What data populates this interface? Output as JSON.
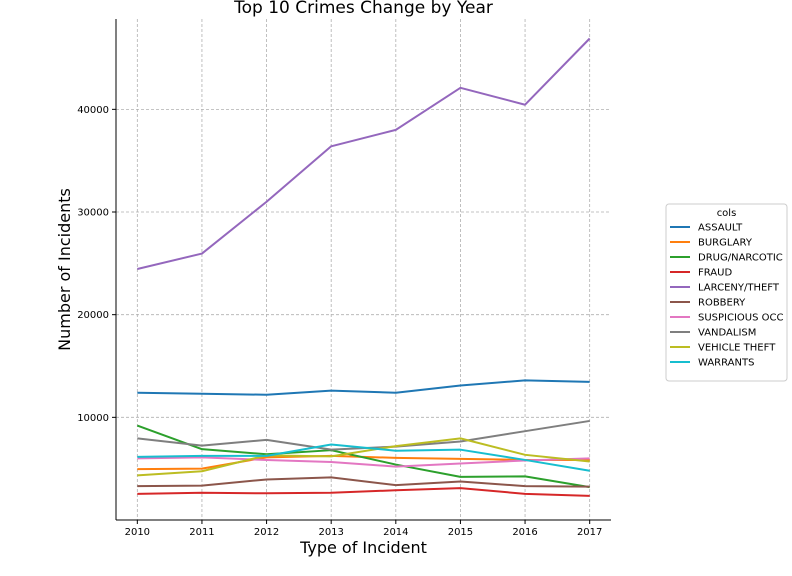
{
  "chart_data": {
    "type": "line",
    "title": "Top 10 Crimes Change by Year",
    "xlabel": "Type of Incident",
    "ylabel": "Number of Incidents",
    "x": [
      2010,
      2011,
      2012,
      2013,
      2014,
      2015,
      2016,
      2017
    ],
    "xtick_labels": [
      "2010",
      "2011",
      "2012",
      "2013",
      "2014",
      "2015",
      "2016",
      "2017"
    ],
    "yticks": [
      10000,
      20000,
      30000,
      40000
    ],
    "ytick_labels": [
      "10000",
      "20000",
      "30000",
      "40000"
    ],
    "ylim": [
      0,
      48800
    ],
    "xlim": [
      2009.67,
      2017.33
    ],
    "grid": true,
    "legend": {
      "title": "cols",
      "placement": "outside-right"
    },
    "series": [
      {
        "name": "ASSAULT",
        "color": "#1f77b4",
        "values": [
          12400,
          12300,
          12200,
          12600,
          12400,
          13100,
          13600,
          13450
        ]
      },
      {
        "name": "BURGLARY",
        "color": "#ff7f0e",
        "values": [
          4950,
          5000,
          6100,
          6250,
          6050,
          5950,
          5850,
          5850
        ]
      },
      {
        "name": "DRUG/NARCOTIC",
        "color": "#2ca02c",
        "values": [
          9200,
          6900,
          6400,
          6800,
          5400,
          4200,
          4250,
          3200
        ]
      },
      {
        "name": "FRAUD",
        "color": "#d62728",
        "values": [
          2550,
          2650,
          2600,
          2650,
          2900,
          3100,
          2550,
          2350
        ]
      },
      {
        "name": "LARCENY/THEFT",
        "color": "#9467bd",
        "values": [
          24450,
          25950,
          31000,
          36400,
          38000,
          42100,
          40450,
          46900
        ]
      },
      {
        "name": "ROBBERY",
        "color": "#8c564b",
        "values": [
          3300,
          3350,
          3950,
          4150,
          3400,
          3750,
          3300,
          3250
        ]
      },
      {
        "name": "SUSPICIOUS OCC",
        "color": "#e377c2",
        "values": [
          6000,
          6100,
          5850,
          5650,
          5200,
          5500,
          5800,
          6000
        ]
      },
      {
        "name": "VANDALISM",
        "color": "#7f7f7f",
        "values": [
          7950,
          7250,
          7800,
          6850,
          7150,
          7650,
          8650,
          9650
        ]
      },
      {
        "name": "VEHICLE THEFT",
        "color": "#bcbd22",
        "values": [
          4350,
          4750,
          6300,
          6200,
          7200,
          7950,
          6350,
          5700
        ]
      },
      {
        "name": "WARRANTS",
        "color": "#17becf",
        "values": [
          6150,
          6250,
          6250,
          7350,
          6750,
          6850,
          5850,
          4800
        ]
      }
    ]
  }
}
